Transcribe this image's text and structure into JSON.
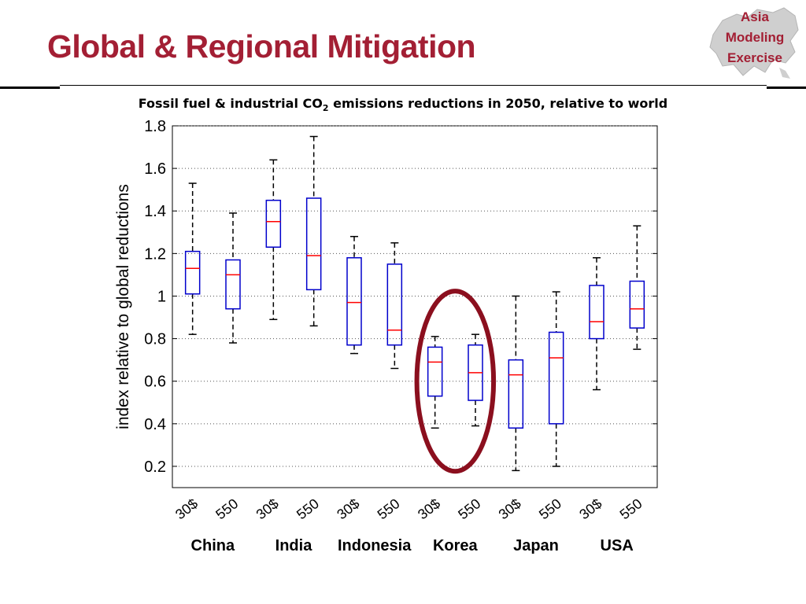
{
  "slide": {
    "title": "Global & Regional Mitigation",
    "logo_lines": [
      "Asia",
      "Modeling",
      "Exercise"
    ],
    "subtitle_pre": "Fossil fuel & industrial CO",
    "subtitle_sub": "2",
    "subtitle_post": " emissions reductions in 2050, relative to world"
  },
  "colors": {
    "title": "#a31f34",
    "box": "#0000cc",
    "median": "#ff0000",
    "highlight": "#8b0f1e"
  },
  "chart_data": {
    "type": "box",
    "title": "",
    "xlabel": "",
    "ylabel": "index relative to global reductions",
    "ylim": [
      0.1,
      1.8
    ],
    "yticks": [
      0.2,
      0.4,
      0.6,
      0.8,
      1,
      1.2,
      1.4,
      1.6,
      1.8
    ],
    "ytick_labels": [
      "0.2",
      "0.4",
      "0.6",
      "0.8",
      "1",
      "1.2",
      "1.4",
      "1.6",
      "1.8"
    ],
    "grid": true,
    "scenarios": [
      "30$",
      "550"
    ],
    "highlight_group": "Korea",
    "groups": [
      {
        "name": "China",
        "boxes": [
          {
            "label": "30$",
            "whisker_low": 0.82,
            "q1": 1.01,
            "median": 1.13,
            "q3": 1.21,
            "whisker_high": 1.53
          },
          {
            "label": "550",
            "whisker_low": 0.78,
            "q1": 0.94,
            "median": 1.1,
            "q3": 1.17,
            "whisker_high": 1.39
          }
        ]
      },
      {
        "name": "India",
        "boxes": [
          {
            "label": "30$",
            "whisker_low": 0.89,
            "q1": 1.23,
            "median": 1.35,
            "q3": 1.45,
            "whisker_high": 1.64
          },
          {
            "label": "550",
            "whisker_low": 0.86,
            "q1": 1.03,
            "median": 1.19,
            "q3": 1.46,
            "whisker_high": 1.75
          }
        ]
      },
      {
        "name": "Indonesia",
        "boxes": [
          {
            "label": "30$",
            "whisker_low": 0.73,
            "q1": 0.77,
            "median": 0.97,
            "q3": 1.18,
            "whisker_high": 1.28
          },
          {
            "label": "550",
            "whisker_low": 0.66,
            "q1": 0.77,
            "median": 0.84,
            "q3": 1.15,
            "whisker_high": 1.25
          }
        ]
      },
      {
        "name": "Korea",
        "boxes": [
          {
            "label": "30$",
            "whisker_low": 0.38,
            "q1": 0.53,
            "median": 0.69,
            "q3": 0.76,
            "whisker_high": 0.81
          },
          {
            "label": "550",
            "whisker_low": 0.39,
            "q1": 0.51,
            "median": 0.64,
            "q3": 0.77,
            "whisker_high": 0.82
          }
        ]
      },
      {
        "name": "Japan",
        "boxes": [
          {
            "label": "30$",
            "whisker_low": 0.18,
            "q1": 0.38,
            "median": 0.63,
            "q3": 0.7,
            "whisker_high": 1.0
          },
          {
            "label": "550",
            "whisker_low": 0.2,
            "q1": 0.4,
            "median": 0.71,
            "q3": 0.83,
            "whisker_high": 1.02
          }
        ]
      },
      {
        "name": "USA",
        "boxes": [
          {
            "label": "30$",
            "whisker_low": 0.56,
            "q1": 0.8,
            "median": 0.88,
            "q3": 1.05,
            "whisker_high": 1.18
          },
          {
            "label": "550",
            "whisker_low": 0.75,
            "q1": 0.85,
            "median": 0.94,
            "q3": 1.07,
            "whisker_high": 1.33
          }
        ]
      }
    ]
  }
}
